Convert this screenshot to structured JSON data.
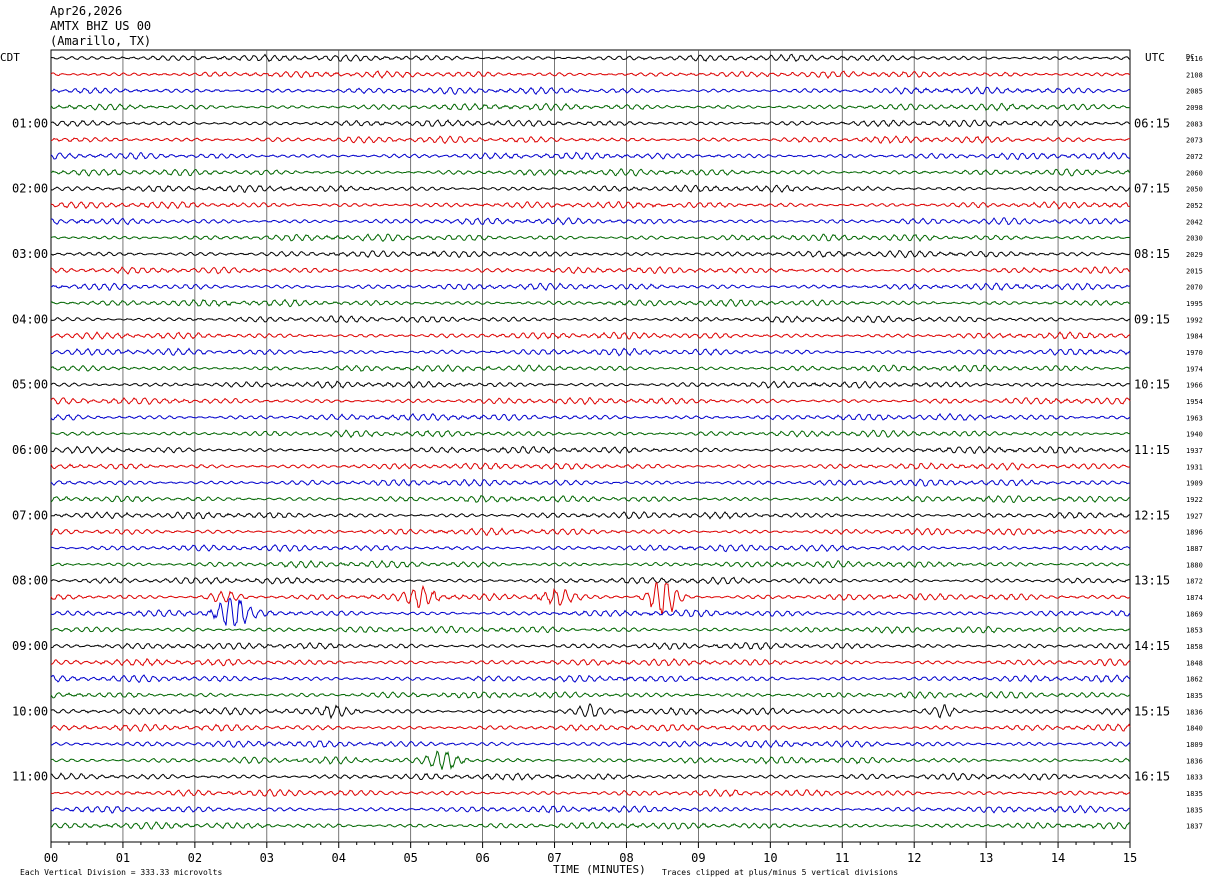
{
  "header": {
    "date": "Apr26,2026",
    "station": "AMTX BHZ US 00",
    "location": "(Amarillo, TX)"
  },
  "left_label": "CDT",
  "right_label": "UTC",
  "dc_label": "DC",
  "footer": {
    "scale_note": "Each Vertical Division =  333.33 microvolts",
    "clip_note": "Traces clipped at plus/minus 5 vertical divisions"
  },
  "chart_data": {
    "type": "line",
    "title": "Apr26,2026",
    "xlabel": "TIME (MINUTES)",
    "ylabel": "",
    "xlim": [
      0,
      15
    ],
    "x_ticks": [
      "00",
      "01",
      "02",
      "03",
      "04",
      "05",
      "06",
      "07",
      "08",
      "09",
      "10",
      "11",
      "12",
      "13",
      "14",
      "15"
    ],
    "left_hour_labels": [
      "01:00",
      "02:00",
      "03:00",
      "04:00",
      "05:00",
      "06:00",
      "07:00",
      "08:00",
      "09:00",
      "10:00",
      "11:00"
    ],
    "right_hour_labels": [
      "06:15",
      "07:15",
      "08:15",
      "09:15",
      "10:15",
      "11:15",
      "12:15",
      "13:15",
      "14:15",
      "15:15",
      "16:15"
    ],
    "trace_colors": [
      "#000000",
      "#dd0000",
      "#0000cc",
      "#006600"
    ],
    "dc_values": [
      "2116",
      "2108",
      "2085",
      "2098",
      "2083",
      "2073",
      "2072",
      "2060",
      "2050",
      "2052",
      "2042",
      "2030",
      "2029",
      "2015",
      "2070",
      "1995",
      "1992",
      "1984",
      "1970",
      "1974",
      "1966",
      "1954",
      "1963",
      "1940",
      "1937",
      "1931",
      "1909",
      "1922",
      "1927",
      "1896",
      "1887",
      "1880",
      "1872",
      "1874",
      "1869",
      "1853",
      "1858",
      "1848",
      "1862",
      "1835",
      "1836",
      "1840",
      "1809",
      "1836",
      "1833",
      "1835",
      "1835",
      "1837"
    ],
    "events": [
      {
        "trace": 33,
        "minute": 2.4,
        "amplitude": 1.4
      },
      {
        "trace": 33,
        "minute": 5.2,
        "amplitude": 2.5
      },
      {
        "trace": 33,
        "minute": 7.0,
        "amplitude": 3.0
      },
      {
        "trace": 33,
        "minute": 8.5,
        "amplitude": 5.0
      },
      {
        "trace": 34,
        "minute": 2.5,
        "amplitude": 5.0
      },
      {
        "trace": 43,
        "minute": 5.5,
        "amplitude": 3.0
      },
      {
        "trace": 40,
        "minute": 4.0,
        "amplitude": 1.6
      },
      {
        "trace": 40,
        "minute": 7.5,
        "amplitude": 1.3
      },
      {
        "trace": 40,
        "minute": 12.4,
        "amplitude": 1.4
      }
    ]
  }
}
